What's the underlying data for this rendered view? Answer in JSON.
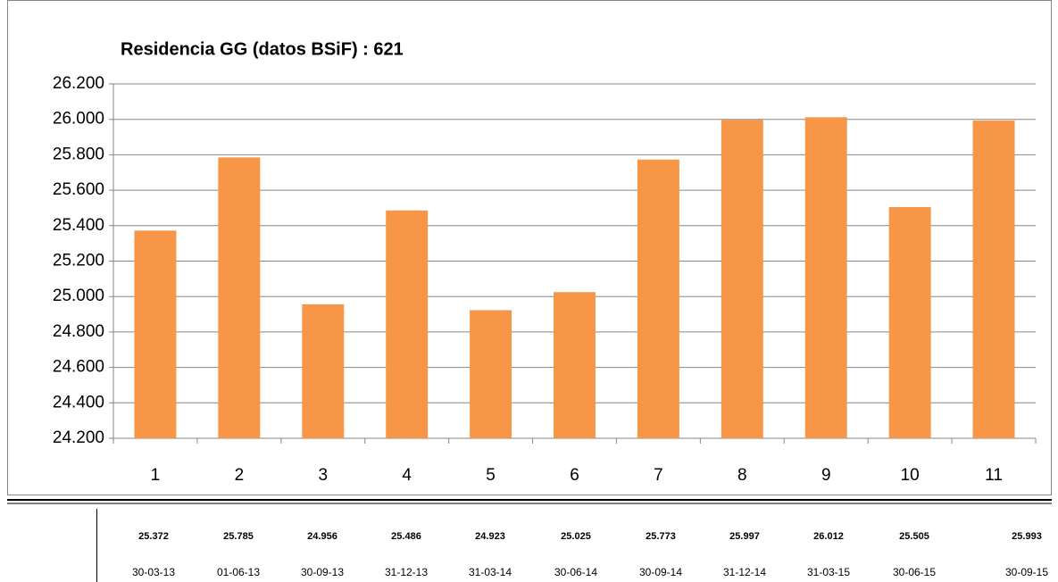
{
  "chart_data": {
    "type": "bar",
    "title": "Residencia GG (datos BSiF) : 621",
    "categories": [
      "1",
      "2",
      "3",
      "4",
      "5",
      "6",
      "7",
      "8",
      "9",
      "10",
      "11"
    ],
    "values": [
      25372,
      25785,
      24956,
      25486,
      24923,
      25025,
      25773,
      25997,
      26012,
      25505,
      25993
    ],
    "value_labels": [
      "25.372",
      "25.785",
      "24.956",
      "25.486",
      "24.923",
      "25.025",
      "25.773",
      "25.997",
      "26.012",
      "25.505",
      "25.993"
    ],
    "color": "#f79646",
    "ylim": [
      24200,
      26200
    ],
    "yticks": [
      {
        "value": 24200,
        "label": "24.200"
      },
      {
        "value": 24400,
        "label": "24.400"
      },
      {
        "value": 24600,
        "label": "24.600"
      },
      {
        "value": 24800,
        "label": "24.800"
      },
      {
        "value": 25000,
        "label": "25.000"
      },
      {
        "value": 25200,
        "label": "25.200"
      },
      {
        "value": 25400,
        "label": "25.400"
      },
      {
        "value": 25600,
        "label": "25.600"
      },
      {
        "value": 25800,
        "label": "25.800"
      },
      {
        "value": 26000,
        "label": "26.000"
      },
      {
        "value": 26200,
        "label": "26.200"
      }
    ],
    "grid": true
  },
  "table": {
    "dates": [
      "30-03-13",
      "01-06-13",
      "30-09-13",
      "31-12-13",
      "31-03-14",
      "30-06-14",
      "30-09-14",
      "31-12-14",
      "31-03-15",
      "30-06-15",
      "30-09-15"
    ]
  }
}
